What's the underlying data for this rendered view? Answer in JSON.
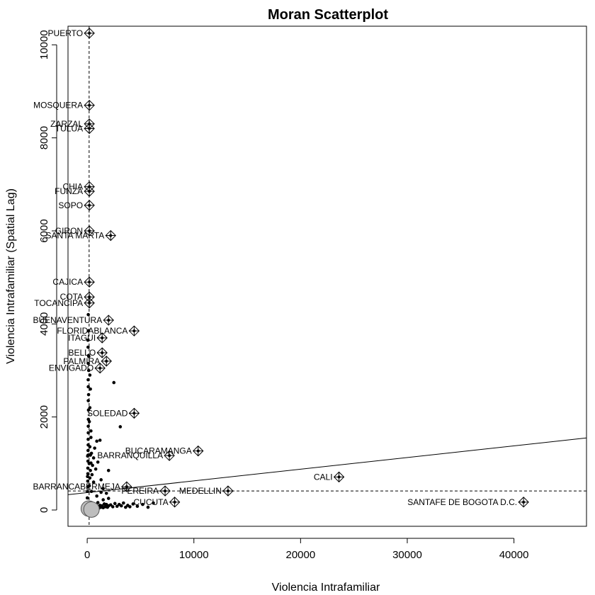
{
  "chart_data": {
    "type": "scatter",
    "title": "Moran Scatterplot",
    "xlabel": "Violencia Intrafamiliar",
    "ylabel": "Violencia Intrafamiliar (Spatial Lag)",
    "xlim": [
      -1800,
      46800
    ],
    "ylim": [
      -350,
      10400
    ],
    "x_ticks": [
      0,
      10000,
      20000,
      30000,
      40000
    ],
    "y_ticks": [
      0,
      2000,
      4000,
      6000,
      8000,
      10000
    ],
    "x_tick_labels": [
      "0",
      "10000",
      "20000",
      "30000",
      "40000"
    ],
    "y_tick_labels": [
      "0",
      "2000",
      "4000",
      "6000",
      "8000",
      "10000"
    ],
    "mean_x": 180,
    "mean_y": 410,
    "regression": {
      "x0": -1800,
      "y0": 330,
      "x1": 46800,
      "y1": 1550
    },
    "labeled_points": [
      {
        "x": 40900,
        "y": 170,
        "label": "SANTAFE DE BOGOTA D.C."
      },
      {
        "x": 23600,
        "y": 710,
        "label": "CALI"
      },
      {
        "x": 13200,
        "y": 410,
        "label": "MEDELLIN"
      },
      {
        "x": 10400,
        "y": 1270,
        "label": "BUCARAMANGA"
      },
      {
        "x": 7700,
        "y": 1170,
        "label": "BARRANQUILLA"
      },
      {
        "x": 8200,
        "y": 170,
        "label": "CUCUTA"
      },
      {
        "x": 7300,
        "y": 410,
        "label": "PEREIRA"
      },
      {
        "x": 3700,
        "y": 500,
        "label": "BARRANCABERMEJA"
      },
      {
        "x": 4400,
        "y": 2080,
        "label": "SOLEDAD"
      },
      {
        "x": 4400,
        "y": 3850,
        "label": "FLORIDABLANCA"
      },
      {
        "x": 2000,
        "y": 4080,
        "label": "BUENAVENTURA"
      },
      {
        "x": 2200,
        "y": 5900,
        "label": "SANTA MARTA"
      },
      {
        "x": 1400,
        "y": 3700,
        "label": "ITAGUI"
      },
      {
        "x": 1400,
        "y": 3380,
        "label": "BELLO"
      },
      {
        "x": 1800,
        "y": 3200,
        "label": "PALMIRA"
      },
      {
        "x": 1200,
        "y": 3050,
        "label": "ENVIGADO"
      },
      {
        "x": 200,
        "y": 10250,
        "label": "PUERTO"
      },
      {
        "x": 200,
        "y": 8700,
        "label": "MOSQUERA"
      },
      {
        "x": 200,
        "y": 8300,
        "label": "ZARZAL"
      },
      {
        "x": 200,
        "y": 8200,
        "label": "TULUA"
      },
      {
        "x": 200,
        "y": 6950,
        "label": "CHIA"
      },
      {
        "x": 200,
        "y": 6850,
        "label": "FUNZA"
      },
      {
        "x": 200,
        "y": 6550,
        "label": "SOPO"
      },
      {
        "x": 200,
        "y": 6000,
        "label": "GIRON"
      },
      {
        "x": 200,
        "y": 4900,
        "label": "CAJICA"
      },
      {
        "x": 200,
        "y": 4580,
        "label": "COTA"
      },
      {
        "x": 200,
        "y": 4450,
        "label": "TOCANCIPA"
      }
    ],
    "points": [
      [
        100,
        40
      ],
      [
        200,
        60
      ],
      [
        300,
        80
      ],
      [
        400,
        30
      ],
      [
        500,
        70
      ],
      [
        600,
        90
      ],
      [
        700,
        50
      ],
      [
        800,
        110
      ],
      [
        900,
        60
      ],
      [
        1000,
        80
      ],
      [
        1100,
        40
      ],
      [
        1200,
        100
      ],
      [
        1300,
        60
      ],
      [
        1400,
        90
      ],
      [
        1500,
        50
      ],
      [
        1600,
        130
      ],
      [
        1700,
        70
      ],
      [
        1800,
        120
      ],
      [
        1900,
        60
      ],
      [
        2000,
        90
      ],
      [
        2200,
        110
      ],
      [
        2400,
        70
      ],
      [
        2600,
        140
      ],
      [
        2800,
        80
      ],
      [
        3000,
        120
      ],
      [
        3200,
        90
      ],
      [
        3400,
        150
      ],
      [
        3600,
        60
      ],
      [
        3800,
        100
      ],
      [
        4000,
        70
      ],
      [
        4300,
        130
      ],
      [
        4700,
        80
      ],
      [
        5200,
        120
      ],
      [
        5700,
        60
      ],
      [
        6200,
        150
      ],
      [
        1000,
        160
      ],
      [
        1500,
        220
      ],
      [
        900,
        300
      ],
      [
        1300,
        380
      ],
      [
        2000,
        250
      ],
      [
        50,
        500
      ],
      [
        50,
        620
      ],
      [
        60,
        780
      ],
      [
        60,
        900
      ],
      [
        70,
        1050
      ],
      [
        80,
        1180
      ],
      [
        80,
        1280
      ],
      [
        90,
        1400
      ],
      [
        90,
        1520
      ],
      [
        100,
        1660
      ],
      [
        100,
        1800
      ],
      [
        110,
        1950
      ],
      [
        120,
        2150
      ],
      [
        100,
        2350
      ],
      [
        130,
        2480
      ],
      [
        100,
        2650
      ],
      [
        90,
        2800
      ],
      [
        140,
        3000
      ],
      [
        100,
        3150
      ],
      [
        120,
        3320
      ],
      [
        80,
        3500
      ],
      [
        60,
        3650
      ],
      [
        110,
        3850
      ],
      [
        200,
        520
      ],
      [
        250,
        690
      ],
      [
        300,
        850
      ],
      [
        350,
        1010
      ],
      [
        300,
        1180
      ],
      [
        250,
        1360
      ],
      [
        350,
        1560
      ],
      [
        400,
        1220
      ],
      [
        450,
        760
      ],
      [
        500,
        960
      ],
      [
        600,
        1120
      ],
      [
        700,
        1330
      ],
      [
        800,
        880
      ],
      [
        900,
        1480
      ],
      [
        1000,
        1030
      ],
      [
        1200,
        1500
      ],
      [
        1300,
        650
      ],
      [
        2000,
        850
      ],
      [
        2500,
        2740
      ],
      [
        3100,
        1790
      ],
      [
        1500,
        460
      ],
      [
        1800,
        360
      ],
      [
        0,
        120
      ],
      [
        10,
        260
      ],
      [
        20,
        400
      ],
      [
        30,
        720
      ],
      [
        40,
        1160
      ],
      [
        300,
        2600
      ],
      [
        250,
        2200
      ],
      [
        200,
        1900
      ],
      [
        350,
        1700
      ],
      [
        180,
        1000
      ],
      [
        400,
        400
      ],
      [
        600,
        600
      ],
      [
        150,
        3300
      ],
      [
        250,
        2900
      ],
      [
        100,
        4200
      ]
    ],
    "influence_markers": [
      [
        150,
        30
      ],
      [
        400,
        10
      ]
    ]
  }
}
